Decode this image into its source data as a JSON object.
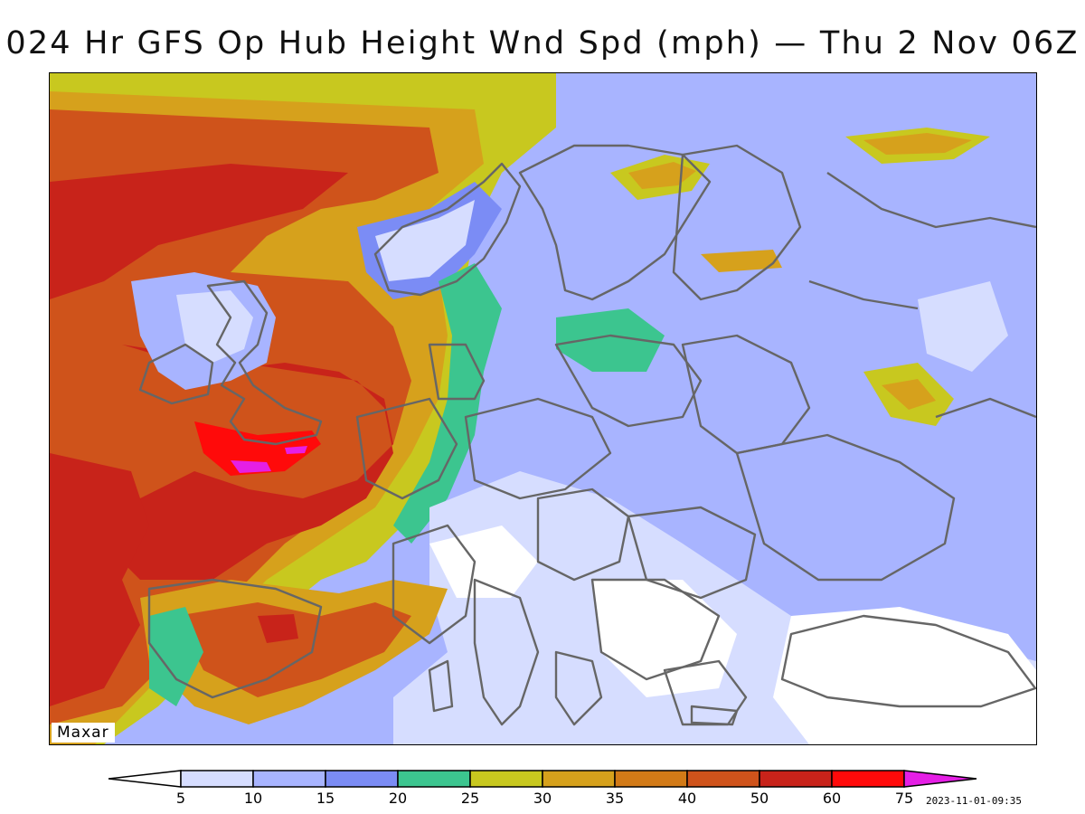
{
  "title": "024 Hr GFS Op Hub Height Wnd Spd (mph) — Thu 2 Nov 06Z",
  "watermark": "Maxar",
  "timestamp": "2023-11-01-09:35",
  "legend": {
    "thresholds": [
      "5",
      "10",
      "15",
      "20",
      "25",
      "30",
      "35",
      "40",
      "50",
      "60",
      "75"
    ],
    "colors": [
      "#d6ddff",
      "#a8b4ff",
      "#7b8cf5",
      "#3cc58f",
      "#c8c81f",
      "#d6a11c",
      "#d27a17",
      "#cf531b",
      "#c8231a",
      "#ff0a0a"
    ],
    "below_color": "#ffffff",
    "above_color": "#e51fe5"
  },
  "map": {
    "region": "Europe",
    "variable": "Hub height wind speed",
    "units": "mph"
  }
}
